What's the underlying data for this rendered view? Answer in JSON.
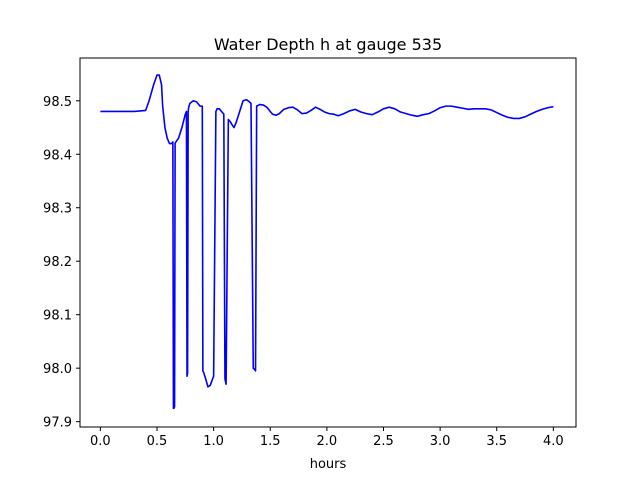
{
  "chart_data": {
    "type": "line",
    "title": "Water Depth h at gauge 535",
    "xlabel": "hours",
    "ylabel": "",
    "xlim": [
      -0.18,
      4.2
    ],
    "ylim": [
      97.89,
      98.58
    ],
    "xticks": [
      {
        "value": 0.0,
        "label": "0.0"
      },
      {
        "value": 0.5,
        "label": "0.5"
      },
      {
        "value": 1.0,
        "label": "1.0"
      },
      {
        "value": 1.5,
        "label": "1.5"
      },
      {
        "value": 2.0,
        "label": "2.0"
      },
      {
        "value": 2.5,
        "label": "2.5"
      },
      {
        "value": 3.0,
        "label": "3.0"
      },
      {
        "value": 3.5,
        "label": "3.5"
      },
      {
        "value": 4.0,
        "label": "4.0"
      }
    ],
    "yticks": [
      {
        "value": 97.9,
        "label": "97.9"
      },
      {
        "value": 98.0,
        "label": "98.0"
      },
      {
        "value": 98.1,
        "label": "98.1"
      },
      {
        "value": 98.2,
        "label": "98.2"
      },
      {
        "value": 98.3,
        "label": "98.3"
      },
      {
        "value": 98.4,
        "label": "98.4"
      },
      {
        "value": 98.5,
        "label": "98.5"
      }
    ],
    "grid": false,
    "series": [
      {
        "color": "#0000ff",
        "x": [
          0.0,
          0.1,
          0.2,
          0.3,
          0.4,
          0.43,
          0.47,
          0.5,
          0.52,
          0.54,
          0.55,
          0.57,
          0.59,
          0.61,
          0.63,
          0.64,
          0.645,
          0.65,
          0.655,
          0.66,
          0.69,
          0.72,
          0.75,
          0.76,
          0.765,
          0.77,
          0.775,
          0.78,
          0.79,
          0.82,
          0.85,
          0.88,
          0.9,
          0.905,
          0.91,
          0.93,
          0.95,
          0.97,
          1.0,
          1.02,
          1.025,
          1.03,
          1.05,
          1.07,
          1.09,
          1.1,
          1.105,
          1.11,
          1.13,
          1.15,
          1.155,
          1.16,
          1.18,
          1.2,
          1.23,
          1.26,
          1.29,
          1.31,
          1.33,
          1.35,
          1.36,
          1.365,
          1.37,
          1.38,
          1.4,
          1.405,
          1.41,
          1.44,
          1.47,
          1.5,
          1.52,
          1.55,
          1.58,
          1.62,
          1.66,
          1.7,
          1.74,
          1.78,
          1.82,
          1.86,
          1.9,
          1.94,
          1.98,
          2.02,
          2.06,
          2.1,
          2.15,
          2.2,
          2.25,
          2.3,
          2.35,
          2.4,
          2.45,
          2.5,
          2.55,
          2.6,
          2.65,
          2.7,
          2.75,
          2.8,
          2.85,
          2.9,
          2.95,
          3.0,
          3.05,
          3.1,
          3.15,
          3.2,
          3.25,
          3.3,
          3.35,
          3.4,
          3.45,
          3.5,
          3.55,
          3.6,
          3.65,
          3.7,
          3.75,
          3.8,
          3.85,
          3.9,
          3.95,
          4.0
        ],
        "y": [
          98.48,
          98.48,
          98.48,
          98.48,
          98.482,
          98.5,
          98.53,
          98.548,
          98.548,
          98.53,
          98.49,
          98.45,
          98.43,
          98.42,
          98.42,
          98.423,
          97.925,
          97.925,
          97.928,
          98.421,
          98.43,
          98.45,
          98.475,
          98.48,
          97.985,
          97.99,
          98.48,
          98.488,
          98.495,
          98.5,
          98.498,
          98.49,
          98.49,
          97.995,
          97.993,
          97.98,
          97.965,
          97.968,
          97.985,
          98.48,
          98.482,
          98.485,
          98.485,
          98.48,
          98.475,
          97.98,
          97.975,
          97.97,
          98.465,
          98.46,
          98.458,
          98.456,
          98.45,
          98.46,
          98.48,
          98.5,
          98.502,
          98.499,
          98.495,
          98.0,
          97.998,
          97.997,
          97.995,
          98.49,
          98.492,
          98.493,
          98.493,
          98.492,
          98.488,
          98.48,
          98.475,
          98.473,
          98.476,
          98.484,
          98.487,
          98.488,
          98.483,
          98.476,
          98.477,
          98.482,
          98.488,
          98.484,
          98.479,
          98.476,
          98.475,
          98.472,
          98.476,
          98.481,
          98.484,
          98.479,
          98.476,
          98.474,
          98.479,
          98.485,
          98.488,
          98.485,
          98.479,
          98.476,
          98.473,
          98.471,
          98.474,
          98.476,
          98.481,
          98.487,
          98.49,
          98.49,
          98.488,
          98.486,
          98.484,
          98.485,
          98.485,
          98.485,
          98.483,
          98.478,
          98.473,
          98.469,
          98.467,
          98.467,
          98.47,
          98.475,
          98.48,
          98.484,
          98.487,
          98.489
        ]
      }
    ]
  }
}
